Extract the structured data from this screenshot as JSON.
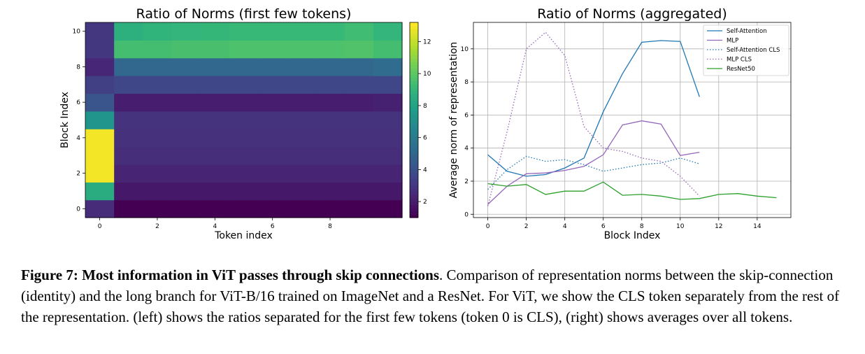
{
  "figure": {
    "caption_bold": "Figure 7: Most information in ViT passes through skip connections",
    "caption_rest": ". Comparison of representation norms between the skip-connection (identity) and the long branch for ViT-B/16 trained on ImageNet and a ResNet. For ViT, we show the CLS token separately from the rest of the representation. (left) shows the ratios separated for the first few tokens (token 0 is CLS), (right) shows averages over all tokens."
  },
  "chart_data": [
    {
      "type": "heatmap",
      "title": "Ratio of Norms (first few tokens)",
      "xlabel": "Token index",
      "ylabel": "Block Index",
      "x_ticks": [
        "0",
        "2",
        "4",
        "6",
        "8"
      ],
      "y_ticks": [
        "0",
        "2",
        "4",
        "6",
        "8",
        "10"
      ],
      "colorbar_ticks": [
        "2",
        "4",
        "6",
        "8",
        "10",
        "12"
      ],
      "colormap": "viridis",
      "vmin": 1,
      "vmax": 13.2,
      "rows_by_block": [
        [
          2.5,
          0.9,
          0.9,
          0.9,
          0.9,
          0.9,
          0.9,
          0.9,
          0.9,
          0.9,
          0.9
        ],
        [
          8.5,
          1.8,
          1.8,
          1.8,
          1.8,
          1.8,
          1.8,
          1.8,
          1.8,
          1.8,
          1.8
        ],
        [
          13.0,
          2.2,
          2.2,
          2.2,
          2.2,
          2.2,
          2.2,
          2.2,
          2.2,
          2.2,
          2.2
        ],
        [
          13.0,
          2.6,
          2.6,
          2.6,
          2.6,
          2.6,
          2.6,
          2.6,
          2.6,
          2.6,
          2.6
        ],
        [
          13.0,
          2.7,
          2.7,
          2.7,
          2.7,
          2.7,
          2.7,
          2.7,
          2.7,
          2.7,
          2.7
        ],
        [
          7.3,
          2.8,
          2.8,
          2.8,
          2.8,
          2.8,
          2.8,
          2.8,
          2.8,
          2.8,
          2.8
        ],
        [
          4.2,
          2.0,
          2.0,
          2.0,
          2.0,
          2.0,
          2.0,
          2.0,
          2.0,
          2.0,
          2.1
        ],
        [
          3.3,
          3.6,
          3.6,
          3.6,
          3.6,
          3.6,
          3.6,
          3.6,
          3.6,
          3.6,
          3.6
        ],
        [
          2.3,
          5.0,
          5.0,
          5.0,
          5.0,
          5.0,
          5.0,
          5.0,
          5.0,
          5.0,
          5.3
        ],
        [
          3.0,
          9.5,
          9.5,
          9.6,
          9.6,
          9.7,
          9.7,
          9.7,
          9.7,
          9.8,
          9.5
        ],
        [
          2.9,
          8.7,
          8.9,
          9.0,
          9.1,
          9.2,
          9.2,
          9.2,
          9.2,
          9.4,
          9.0
        ]
      ]
    },
    {
      "type": "line",
      "title": "Ratio of Norms (aggregated)",
      "xlabel": "Block Index",
      "ylabel": "Average norm of representation",
      "xlim": [
        -0.75,
        15.75
      ],
      "ylim": [
        -0.2,
        11.6
      ],
      "x_ticks": [
        0,
        2,
        4,
        6,
        8,
        10,
        12,
        14
      ],
      "y_ticks": [
        0,
        2,
        4,
        6,
        8,
        10
      ],
      "grid": true,
      "legend_position": "top-right",
      "series": [
        {
          "name": "Self-Attention",
          "color": "#1f77b4",
          "dash": "solid",
          "x": [
            0,
            1,
            2,
            3,
            4,
            5,
            6,
            7,
            8,
            9,
            10,
            11
          ],
          "y": [
            3.6,
            2.6,
            2.3,
            2.4,
            2.8,
            3.4,
            6.2,
            8.5,
            10.4,
            10.5,
            10.45,
            7.1
          ]
        },
        {
          "name": "MLP",
          "color": "#9467bd",
          "dash": "solid",
          "x": [
            0,
            1,
            2,
            3,
            4,
            5,
            6,
            7,
            8,
            9,
            10,
            11
          ],
          "y": [
            0.6,
            1.7,
            2.45,
            2.5,
            2.65,
            2.9,
            3.6,
            5.4,
            5.65,
            5.45,
            3.55,
            3.75
          ]
        },
        {
          "name": "Self-Attention CLS",
          "color": "#1f77b4",
          "dash": "dotted",
          "x": [
            0,
            1,
            2,
            3,
            4,
            5,
            6,
            7,
            8,
            9,
            10,
            11
          ],
          "y": [
            1.5,
            2.7,
            3.5,
            3.2,
            3.3,
            3.0,
            2.6,
            2.8,
            3.0,
            3.1,
            3.4,
            3.05
          ]
        },
        {
          "name": "MLP CLS",
          "color": "#9467bd",
          "dash": "dotted",
          "x": [
            0,
            1,
            2,
            3,
            4,
            5,
            6,
            7,
            8,
            9,
            10,
            11
          ],
          "y": [
            0.5,
            5.0,
            10.0,
            11.0,
            9.6,
            5.3,
            4.0,
            3.8,
            3.4,
            3.2,
            2.3,
            1.1
          ]
        },
        {
          "name": "ResNet50",
          "color": "#2ca02c",
          "dash": "solid",
          "x": [
            0,
            1,
            2,
            3,
            4,
            5,
            6,
            7,
            8,
            9,
            10,
            11,
            12,
            13,
            14,
            15
          ],
          "y": [
            1.85,
            1.7,
            1.8,
            1.2,
            1.4,
            1.4,
            1.95,
            1.15,
            1.2,
            1.1,
            0.9,
            0.95,
            1.2,
            1.25,
            1.1,
            1.0
          ]
        }
      ]
    }
  ]
}
